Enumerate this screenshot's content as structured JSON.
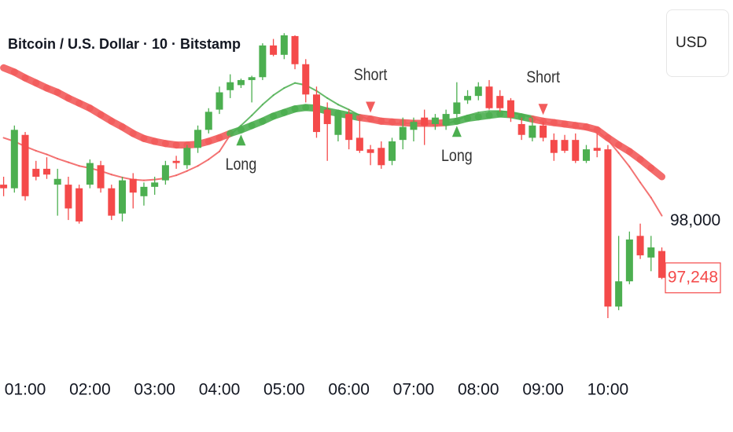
{
  "ui": {
    "currency": "USD"
  },
  "chart_data": {
    "type": "candlestick",
    "title": "Bitcoin / U.S. Dollar · 10 · Bitstamp",
    "categories": [
      null,
      null,
      "01:00",
      null,
      null,
      null,
      null,
      null,
      "02:00",
      null,
      null,
      null,
      null,
      null,
      "03:00",
      null,
      null,
      null,
      null,
      null,
      "04:00",
      null,
      null,
      null,
      null,
      null,
      "05:00",
      null,
      null,
      null,
      null,
      null,
      "06:00",
      null,
      null,
      null,
      null,
      null,
      "07:00",
      null,
      null,
      null,
      null,
      null,
      "08:00",
      null,
      null,
      null,
      null,
      null,
      "09:00",
      null,
      null,
      null,
      null,
      null,
      "10:00",
      null,
      null,
      null,
      null,
      null
    ],
    "open": [
      98540,
      98490,
      99230,
      98760,
      98760,
      98540,
      98540,
      98490,
      98540,
      98810,
      98490,
      98140,
      98620,
      98380,
      98510,
      98600,
      98870,
      98810,
      99050,
      99300,
      99580,
      99850,
      99920,
      99990,
      100030,
      100470,
      100340,
      100600,
      100210,
      99790,
      99580,
      99230,
      99520,
      99190,
      99030,
      99050,
      98870,
      99160,
      99300,
      99470,
      99380,
      99360,
      99520,
      99710,
      99770,
      99900,
      99770,
      99710,
      99380,
      99190,
      99360,
      99160,
      99160,
      99160,
      98870,
      99050,
      99030,
      96850,
      97200,
      97830,
      97530,
      97620
    ],
    "high": [
      98650,
      99360,
      99270,
      98870,
      98920,
      98760,
      98650,
      98540,
      98890,
      98870,
      98540,
      98650,
      98700,
      98570,
      98650,
      98870,
      98940,
      99090,
      99360,
      99600,
      99900,
      100070,
      100010,
      100050,
      100500,
      100560,
      100640,
      100610,
      100280,
      99900,
      99680,
      99580,
      99580,
      99470,
      99090,
      99140,
      99190,
      99470,
      99470,
      99580,
      99520,
      99580,
      99960,
      99850,
      99960,
      99990,
      99850,
      99740,
      99470,
      99470,
      99410,
      99250,
      99230,
      99250,
      99090,
      99250,
      99090,
      97830,
      97890,
      98000,
      97830,
      97670
    ],
    "low": [
      98380,
      98430,
      98320,
      98600,
      98620,
      98110,
      98050,
      98000,
      98490,
      98430,
      98050,
      98030,
      98210,
      98250,
      98400,
      98540,
      98760,
      98760,
      98980,
      99250,
      99520,
      99740,
      99880,
      99680,
      99990,
      100320,
      100280,
      100140,
      99680,
      99190,
      98870,
      99140,
      99030,
      98980,
      98810,
      98760,
      98810,
      99030,
      99140,
      99090,
      99300,
      99300,
      99470,
      99660,
      99710,
      99580,
      99550,
      99410,
      99160,
      99140,
      99140,
      98870,
      98980,
      98840,
      98840,
      98920,
      96690,
      96800,
      97160,
      97510,
      97340,
      97230
    ],
    "close": [
      98490,
      99300,
      98380,
      98650,
      98680,
      98620,
      98210,
      98030,
      98840,
      98490,
      98110,
      98600,
      98430,
      98510,
      98570,
      98810,
      98840,
      99050,
      99300,
      99550,
      99820,
      99960,
      99990,
      100030,
      100470,
      100340,
      100610,
      100210,
      99790,
      99270,
      99380,
      99520,
      99160,
      99010,
      98980,
      98810,
      99140,
      99340,
      99410,
      99360,
      99470,
      99520,
      99680,
      99770,
      99900,
      99600,
      99600,
      99470,
      99230,
      99360,
      99190,
      98980,
      99010,
      98870,
      99030,
      99010,
      96850,
      97200,
      97780,
      97560,
      97670,
      97248
    ],
    "up_color": "#4caf50",
    "down_color": "#f44a4a",
    "ylim": [
      96200,
      101100
    ],
    "yticks": [
      {
        "value": 98000,
        "label": "98,000"
      }
    ],
    "last_price_label": "97,248",
    "moving_averages": {
      "fast": [
        99190,
        99140,
        99070,
        99010,
        98960,
        98900,
        98850,
        98800,
        98770,
        98730,
        98680,
        98640,
        98610,
        98600,
        98610,
        98630,
        98670,
        98730,
        98800,
        98890,
        99000,
        99230,
        99360,
        99500,
        99650,
        99780,
        99880,
        99950,
        99920,
        99840,
        99740,
        99650,
        99580,
        99500,
        99430,
        99410,
        99390,
        99390,
        99390,
        99390,
        99380,
        99380,
        99430,
        99500,
        99540,
        99560,
        99560,
        99540,
        99510,
        99470,
        99410,
        99380,
        99360,
        99340,
        99310,
        99290,
        99160,
        98980,
        98790,
        98570,
        98360,
        98110
      ],
      "slow": [
        100160,
        100100,
        100020,
        99950,
        99880,
        99820,
        99740,
        99670,
        99600,
        99510,
        99420,
        99340,
        99250,
        99180,
        99140,
        99110,
        99090,
        99090,
        99100,
        99140,
        99190,
        99250,
        99300,
        99360,
        99420,
        99490,
        99540,
        99590,
        99610,
        99600,
        99560,
        99530,
        99500,
        99470,
        99450,
        99420,
        99410,
        99400,
        99390,
        99390,
        99390,
        99400,
        99420,
        99460,
        99480,
        99500,
        99520,
        99510,
        99480,
        99450,
        99420,
        99400,
        99380,
        99360,
        99340,
        99300,
        99190,
        99090,
        99000,
        98890,
        98770,
        98650
      ],
      "bull_color": "#4caf50",
      "bear_color": "#f25c5c"
    },
    "signals": [
      {
        "label": "Long"
      },
      {
        "label": "Short"
      },
      {
        "label": "Long"
      },
      {
        "label": "Short"
      }
    ]
  }
}
